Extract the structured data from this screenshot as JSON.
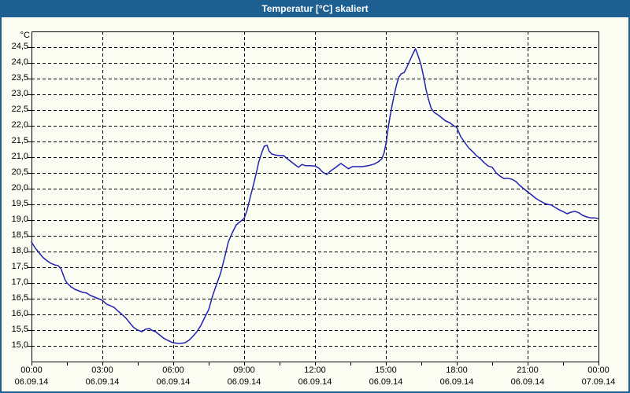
{
  "window": {
    "title": "Temperatur [°C] skaliert"
  },
  "colors": {
    "titlebar": "#1D5F91",
    "frame": "#1D5F91",
    "background": "#FBFCF2",
    "curve": "#2222B2",
    "grid": "#000000",
    "axis": "#000000",
    "label_text": "#000000",
    "title_text": "#FFFFFF"
  },
  "chart_data": {
    "type": "line",
    "title": "Temperatur [°C] skaliert",
    "xlabel": "",
    "ylabel": "°C",
    "ylim": [
      14.5,
      25.0
    ],
    "xlim_hours": [
      0,
      24
    ],
    "grid": "dashed",
    "legend_position": "none",
    "y_ticks": [
      {
        "value": 24.5,
        "label": "24,5"
      },
      {
        "value": 24.0,
        "label": "24,0"
      },
      {
        "value": 23.5,
        "label": "23,5"
      },
      {
        "value": 23.0,
        "label": "23,0"
      },
      {
        "value": 22.5,
        "label": "22,5"
      },
      {
        "value": 22.0,
        "label": "22,0"
      },
      {
        "value": 21.5,
        "label": "21,5"
      },
      {
        "value": 21.0,
        "label": "21,0"
      },
      {
        "value": 20.5,
        "label": "20,5"
      },
      {
        "value": 20.0,
        "label": "20,0"
      },
      {
        "value": 19.5,
        "label": "19,5"
      },
      {
        "value": 19.0,
        "label": "19,0"
      },
      {
        "value": 18.5,
        "label": "18,5"
      },
      {
        "value": 18.0,
        "label": "18,0"
      },
      {
        "value": 17.5,
        "label": "17,5"
      },
      {
        "value": 17.0,
        "label": "17,0"
      },
      {
        "value": 16.5,
        "label": "16,5"
      },
      {
        "value": 16.0,
        "label": "16,0"
      },
      {
        "value": 15.5,
        "label": "15,5"
      },
      {
        "value": 15.0,
        "label": "15,0"
      }
    ],
    "x_ticks": [
      {
        "hour": 0,
        "time": "00:00",
        "date": "06.09.14"
      },
      {
        "hour": 3,
        "time": "03:00",
        "date": "06.09.14"
      },
      {
        "hour": 6,
        "time": "06:00",
        "date": "06.09.14"
      },
      {
        "hour": 9,
        "time": "09:00",
        "date": "06.09.14"
      },
      {
        "hour": 12,
        "time": "12:00",
        "date": "06.09.14"
      },
      {
        "hour": 15,
        "time": "15:00",
        "date": "06.09.14"
      },
      {
        "hour": 18,
        "time": "18:00",
        "date": "06.09.14"
      },
      {
        "hour": 21,
        "time": "21:00",
        "date": "06.09.14"
      },
      {
        "hour": 24,
        "time": "00:00",
        "date": "07.09.14"
      }
    ],
    "x_minor_tick_step_hours": 1.5,
    "series": [
      {
        "name": "Temperatur [°C]",
        "color": "#2222B2",
        "points": [
          [
            0.0,
            18.3
          ],
          [
            0.17,
            18.1
          ],
          [
            0.33,
            17.95
          ],
          [
            0.5,
            17.8
          ],
          [
            0.67,
            17.7
          ],
          [
            0.83,
            17.62
          ],
          [
            1.0,
            17.57
          ],
          [
            1.13,
            17.55
          ],
          [
            1.25,
            17.45
          ],
          [
            1.42,
            17.1
          ],
          [
            1.5,
            17.0
          ],
          [
            1.67,
            16.88
          ],
          [
            1.83,
            16.8
          ],
          [
            2.0,
            16.75
          ],
          [
            2.17,
            16.7
          ],
          [
            2.33,
            16.68
          ],
          [
            2.5,
            16.6
          ],
          [
            2.67,
            16.55
          ],
          [
            2.83,
            16.5
          ],
          [
            3.0,
            16.45
          ],
          [
            3.17,
            16.33
          ],
          [
            3.33,
            16.28
          ],
          [
            3.5,
            16.22
          ],
          [
            3.67,
            16.1
          ],
          [
            3.83,
            16.0
          ],
          [
            4.0,
            15.88
          ],
          [
            4.17,
            15.72
          ],
          [
            4.33,
            15.58
          ],
          [
            4.5,
            15.5
          ],
          [
            4.67,
            15.45
          ],
          [
            4.83,
            15.53
          ],
          [
            5.0,
            15.55
          ],
          [
            5.08,
            15.5
          ],
          [
            5.25,
            15.45
          ],
          [
            5.42,
            15.35
          ],
          [
            5.58,
            15.25
          ],
          [
            5.75,
            15.18
          ],
          [
            5.92,
            15.12
          ],
          [
            6.0,
            15.1
          ],
          [
            6.17,
            15.08
          ],
          [
            6.33,
            15.08
          ],
          [
            6.5,
            15.1
          ],
          [
            6.67,
            15.18
          ],
          [
            6.83,
            15.3
          ],
          [
            7.0,
            15.45
          ],
          [
            7.17,
            15.65
          ],
          [
            7.33,
            15.9
          ],
          [
            7.5,
            16.15
          ],
          [
            7.67,
            16.6
          ],
          [
            7.83,
            16.95
          ],
          [
            8.0,
            17.3
          ],
          [
            8.17,
            17.8
          ],
          [
            8.33,
            18.3
          ],
          [
            8.5,
            18.6
          ],
          [
            8.67,
            18.85
          ],
          [
            8.83,
            18.95
          ],
          [
            9.0,
            19.05
          ],
          [
            9.12,
            19.3
          ],
          [
            9.25,
            19.7
          ],
          [
            9.37,
            20.05
          ],
          [
            9.5,
            20.45
          ],
          [
            9.62,
            20.85
          ],
          [
            9.75,
            21.15
          ],
          [
            9.85,
            21.35
          ],
          [
            9.97,
            21.38
          ],
          [
            10.05,
            21.2
          ],
          [
            10.17,
            21.1
          ],
          [
            10.33,
            21.07
          ],
          [
            10.5,
            21.05
          ],
          [
            10.67,
            21.05
          ],
          [
            10.83,
            20.95
          ],
          [
            11.0,
            20.85
          ],
          [
            11.17,
            20.75
          ],
          [
            11.3,
            20.68
          ],
          [
            11.45,
            20.77
          ],
          [
            11.6,
            20.73
          ],
          [
            11.75,
            20.73
          ],
          [
            12.0,
            20.72
          ],
          [
            12.17,
            20.65
          ],
          [
            12.33,
            20.52
          ],
          [
            12.5,
            20.45
          ],
          [
            12.67,
            20.57
          ],
          [
            12.83,
            20.65
          ],
          [
            13.0,
            20.75
          ],
          [
            13.1,
            20.8
          ],
          [
            13.25,
            20.72
          ],
          [
            13.42,
            20.63
          ],
          [
            13.58,
            20.7
          ],
          [
            13.75,
            20.7
          ],
          [
            14.0,
            20.7
          ],
          [
            14.25,
            20.73
          ],
          [
            14.5,
            20.78
          ],
          [
            14.67,
            20.85
          ],
          [
            14.83,
            20.95
          ],
          [
            14.93,
            21.15
          ],
          [
            15.02,
            21.5
          ],
          [
            15.1,
            21.95
          ],
          [
            15.2,
            22.4
          ],
          [
            15.33,
            22.9
          ],
          [
            15.45,
            23.3
          ],
          [
            15.55,
            23.55
          ],
          [
            15.65,
            23.65
          ],
          [
            15.78,
            23.7
          ],
          [
            15.88,
            23.85
          ],
          [
            16.0,
            24.05
          ],
          [
            16.12,
            24.25
          ],
          [
            16.25,
            24.45
          ],
          [
            16.33,
            24.3
          ],
          [
            16.42,
            24.1
          ],
          [
            16.5,
            23.9
          ],
          [
            16.6,
            23.55
          ],
          [
            16.7,
            23.15
          ],
          [
            16.8,
            22.85
          ],
          [
            16.92,
            22.55
          ],
          [
            17.05,
            22.42
          ],
          [
            17.2,
            22.35
          ],
          [
            17.37,
            22.25
          ],
          [
            17.53,
            22.15
          ],
          [
            17.7,
            22.1
          ],
          [
            17.87,
            22.0
          ],
          [
            18.0,
            21.95
          ],
          [
            18.17,
            21.65
          ],
          [
            18.33,
            21.48
          ],
          [
            18.5,
            21.3
          ],
          [
            18.67,
            21.18
          ],
          [
            18.83,
            21.05
          ],
          [
            19.0,
            20.95
          ],
          [
            19.17,
            20.82
          ],
          [
            19.33,
            20.72
          ],
          [
            19.5,
            20.68
          ],
          [
            19.67,
            20.5
          ],
          [
            19.83,
            20.4
          ],
          [
            20.0,
            20.32
          ],
          [
            20.17,
            20.33
          ],
          [
            20.33,
            20.3
          ],
          [
            20.5,
            20.23
          ],
          [
            20.67,
            20.1
          ],
          [
            20.83,
            20.0
          ],
          [
            21.0,
            19.9
          ],
          [
            21.17,
            19.8
          ],
          [
            21.33,
            19.7
          ],
          [
            21.5,
            19.62
          ],
          [
            21.67,
            19.55
          ],
          [
            21.83,
            19.5
          ],
          [
            22.0,
            19.48
          ],
          [
            22.17,
            19.4
          ],
          [
            22.33,
            19.33
          ],
          [
            22.5,
            19.27
          ],
          [
            22.67,
            19.2
          ],
          [
            22.83,
            19.25
          ],
          [
            23.0,
            19.28
          ],
          [
            23.17,
            19.23
          ],
          [
            23.33,
            19.15
          ],
          [
            23.5,
            19.1
          ],
          [
            23.67,
            19.07
          ],
          [
            23.83,
            19.07
          ],
          [
            23.97,
            19.05
          ]
        ]
      }
    ]
  }
}
